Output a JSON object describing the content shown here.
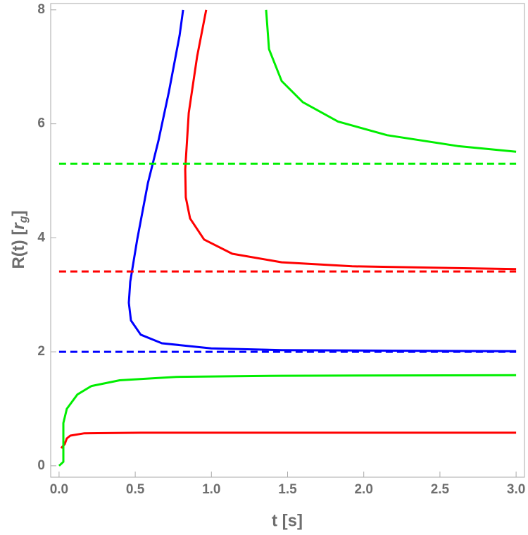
{
  "chart_data": {
    "type": "line",
    "x_label": "t [s]",
    "y_label": [
      "R(t) [",
      "r",
      "g",
      "]"
    ],
    "xlim": [
      -0.055,
      3.055
    ],
    "ylim": [
      -0.2,
      8.11
    ],
    "xticks": [
      {
        "value": 0,
        "label": "0.0"
      },
      0.5,
      {
        "value": 1,
        "label": "1.0"
      },
      1.5,
      {
        "value": 2,
        "label": "2.0"
      },
      2.5,
      {
        "value": 3,
        "label": "3.0"
      }
    ],
    "yticks": [
      0,
      2,
      4,
      6,
      8
    ],
    "series": [
      {
        "color": "#0000ff",
        "dashed": false,
        "x": [
          0.814,
          0.791,
          0.721,
          0.652,
          0.583,
          0.513,
          0.467,
          0.458,
          0.472,
          0.536,
          0.675,
          0.999,
          1.461,
          3.0
        ],
        "values": [
          8.0,
          7.55,
          6.56,
          5.7,
          4.96,
          3.97,
          3.23,
          2.86,
          2.55,
          2.3,
          2.15,
          2.06,
          2.03,
          2.01
        ]
      },
      {
        "color": "#0000ff",
        "dashed": true,
        "x": [
          0,
          3
        ],
        "values": [
          2.0,
          2.0
        ]
      },
      {
        "color": "#ff0000",
        "dashed": false,
        "x": [
          0.966,
          0.906,
          0.851,
          0.828,
          0.832,
          0.86,
          0.952,
          1.137,
          1.461,
          1.923,
          3.0
        ],
        "values": [
          8.0,
          7.18,
          6.19,
          5.2,
          4.71,
          4.34,
          3.97,
          3.72,
          3.57,
          3.5,
          3.45
        ]
      },
      {
        "color": "#ff0000",
        "dashed": true,
        "x": [
          0,
          3
        ],
        "values": [
          3.41,
          3.41
        ]
      },
      {
        "color": "#ff0000",
        "dashed": false,
        "x": [
          0.014,
          0.037,
          0.051,
          0.074,
          0.166,
          0.536,
          3.0
        ],
        "values": [
          0.31,
          0.38,
          0.48,
          0.53,
          0.57,
          0.58,
          0.58
        ]
      },
      {
        "color": "#00ee00",
        "dashed": true,
        "x": [
          0,
          3
        ],
        "values": [
          5.3,
          5.3
        ]
      },
      {
        "color": "#00ee00",
        "dashed": false,
        "x": [
          1.359,
          1.378,
          1.461,
          1.6,
          1.831,
          2.154,
          2.617,
          3.0
        ],
        "values": [
          8.0,
          7.31,
          6.75,
          6.38,
          6.04,
          5.8,
          5.61,
          5.51
        ]
      },
      {
        "color": "#00ee00",
        "dashed": false,
        "x": [
          0,
          0.028,
          0.028,
          0.051,
          0.12,
          0.213,
          0.398,
          0.767,
          1.461,
          3.0
        ],
        "values": [
          0,
          0.07,
          0.75,
          1.0,
          1.25,
          1.4,
          1.5,
          1.56,
          1.58,
          1.59
        ]
      }
    ]
  }
}
